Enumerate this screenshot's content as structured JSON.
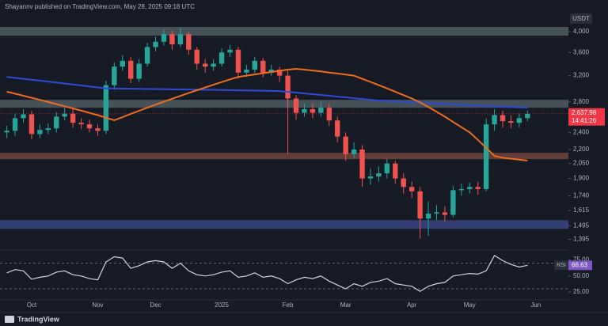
{
  "header": {
    "text": "Shayannv published on TradingView.com, May 28, 2025 09:18 UTC"
  },
  "footer": {
    "brand": "TradingView"
  },
  "chart_data": {
    "type": "candlestick",
    "currency": "USDT",
    "log_scale": true,
    "categories": [
      null,
      null,
      null,
      "Oct",
      null,
      null,
      null,
      null,
      null,
      null,
      null,
      "Nov",
      null,
      null,
      null,
      null,
      null,
      null,
      "Dec",
      null,
      null,
      null,
      null,
      null,
      null,
      null,
      "2025",
      null,
      null,
      null,
      null,
      null,
      null,
      null,
      "Feb",
      null,
      null,
      null,
      null,
      null,
      null,
      "Mar",
      null,
      null,
      null,
      null,
      null,
      null,
      null,
      "Apr",
      null,
      null,
      null,
      null,
      null,
      null,
      "May",
      null,
      null,
      null,
      null,
      null,
      null,
      null,
      "Jun"
    ],
    "open": [
      2400,
      2420,
      2580,
      2630,
      2380,
      2430,
      2450,
      2600,
      2640,
      2520,
      2500,
      2450,
      2420,
      3050,
      3350,
      3450,
      3150,
      3400,
      3700,
      3800,
      3950,
      3750,
      3950,
      3650,
      3400,
      3350,
      3400,
      3600,
      3650,
      3250,
      3300,
      3450,
      3250,
      3300,
      3200,
      2850,
      2650,
      2700,
      2650,
      2720,
      2550,
      2350,
      2150,
      2200,
      1900,
      1920,
      1950,
      2050,
      1900,
      1820,
      1780,
      1550,
      1590,
      1600,
      1580,
      1790,
      1800,
      1820,
      1800,
      2500,
      2620,
      2540,
      2520,
      2580,
      null
    ],
    "high": [
      2480,
      2640,
      2700,
      2680,
      2500,
      2510,
      2660,
      2720,
      2700,
      2580,
      2560,
      2500,
      3120,
      3420,
      3550,
      3520,
      3480,
      3780,
      3900,
      4050,
      4020,
      4080,
      4000,
      3700,
      3480,
      3480,
      3680,
      3740,
      3700,
      3380,
      3520,
      3500,
      3380,
      3350,
      3280,
      2900,
      2780,
      2780,
      2800,
      2780,
      2600,
      2400,
      2280,
      2250,
      2000,
      2020,
      2100,
      2080,
      1950,
      1870,
      1820,
      1690,
      1660,
      1650,
      1830,
      1850,
      1860,
      1870,
      2580,
      2700,
      2680,
      2620,
      2640,
      2680,
      null
    ],
    "low": [
      2330,
      2360,
      2520,
      2320,
      2330,
      2380,
      2400,
      2550,
      2460,
      2440,
      2400,
      2360,
      2380,
      2980,
      3280,
      3080,
      3100,
      3350,
      3620,
      3730,
      3650,
      3700,
      3560,
      3300,
      3250,
      3280,
      3350,
      3520,
      3150,
      3180,
      3240,
      3170,
      3200,
      3100,
      2150,
      2560,
      2600,
      2580,
      2600,
      2480,
      2280,
      2080,
      2100,
      1820,
      1840,
      1870,
      1900,
      1850,
      1760,
      1720,
      1400,
      1420,
      1540,
      1530,
      1560,
      1740,
      1760,
      1750,
      1780,
      2420,
      2460,
      2450,
      2460,
      2540,
      null
    ],
    "close": [
      2420,
      2580,
      2630,
      2380,
      2430,
      2450,
      2600,
      2640,
      2520,
      2500,
      2450,
      2420,
      3050,
      3350,
      3450,
      3150,
      3400,
      3700,
      3800,
      3950,
      3750,
      3950,
      3650,
      3400,
      3350,
      3400,
      3600,
      3650,
      3250,
      3300,
      3450,
      3250,
      3300,
      3200,
      2850,
      2650,
      2700,
      2650,
      2720,
      2550,
      2350,
      2150,
      2200,
      1900,
      1920,
      1950,
      2050,
      1900,
      1820,
      1780,
      1550,
      1590,
      1600,
      1580,
      1790,
      1800,
      1820,
      1800,
      2500,
      2620,
      2540,
      2520,
      2580,
      2637.98,
      null
    ],
    "up_color": "#26a69a",
    "down_color": "#ef5350",
    "ylim": [
      1327,
      4164
    ],
    "yticks": [
      {
        "value": 4000,
        "label": "4,000"
      },
      {
        "value": 3600,
        "label": "3,600"
      },
      {
        "value": 3200,
        "label": "3,200"
      },
      {
        "value": 2800,
        "label": "2,800"
      },
      {
        "value": 2400,
        "label": "2,400"
      },
      {
        "value": 2200,
        "label": "2,200"
      },
      {
        "value": 2050,
        "label": "2,050"
      },
      {
        "value": 1900,
        "label": "1,900"
      },
      {
        "value": 1740,
        "label": "1,740"
      },
      {
        "value": 1615,
        "label": "1,615"
      },
      {
        "value": 1495,
        "label": "1,495"
      },
      {
        "value": 1395,
        "label": "1,395"
      }
    ],
    "last_price": {
      "value": 2637.98,
      "label": "2,637.98",
      "timer": "14:41:26",
      "color": "#f23645"
    },
    "lines": [
      {
        "color": "#2e4bd8",
        "values": [
          3180,
          3165,
          3150,
          3135,
          3120,
          3105,
          3090,
          3075,
          3060,
          3045,
          3030,
          3015,
          3000,
          2998,
          2996,
          2995,
          2993,
          2991,
          2990,
          2988,
          2986,
          2985,
          2983,
          2981,
          2980,
          2978,
          2976,
          2973,
          2971,
          2969,
          2967,
          2965,
          2962,
          2960,
          2948,
          2937,
          2925,
          2913,
          2902,
          2890,
          2878,
          2867,
          2855,
          2843,
          2832,
          2820,
          2814,
          2808,
          2802,
          2796,
          2791,
          2785,
          2779,
          2773,
          2768,
          2762,
          2756,
          2750,
          2745,
          2740,
          2735,
          2730,
          2725,
          2720,
          null
        ]
      },
      {
        "color": "#f26b1d",
        "values": [
          2950,
          2920,
          2890,
          2860,
          2830,
          2800,
          2770,
          2740,
          2710,
          2680,
          2650,
          2620,
          2585,
          2552,
          2594,
          2636,
          2678,
          2720,
          2762,
          2804,
          2846,
          2888,
          2930,
          2972,
          3014,
          3056,
          3098,
          3140,
          3180,
          3200,
          3220,
          3240,
          3260,
          3280,
          3300,
          3313,
          3300,
          3285,
          3270,
          3250,
          3235,
          3218,
          3200,
          3150,
          3100,
          3050,
          3000,
          2950,
          2900,
          2850,
          2795,
          2730,
          2665,
          2600,
          2530,
          2465,
          2400,
          2310,
          2220,
          2130,
          2110,
          2100,
          2090,
          2080,
          null
        ]
      }
    ],
    "zones": [
      {
        "from": 3920,
        "to": 4098,
        "color": "#56666a"
      },
      {
        "from": 2720,
        "to": 2831,
        "color": "#56666a"
      },
      {
        "from": 2095,
        "to": 2164,
        "color": "#7a4a3c"
      },
      {
        "from": 1472,
        "to": 1538,
        "color": "#3d4c8c"
      }
    ],
    "rsi": {
      "label": "RSI",
      "color": "#d1d4dc",
      "values": [
        55,
        60,
        58,
        45,
        48,
        50,
        56,
        58,
        52,
        50,
        46,
        44,
        72,
        80,
        78,
        62,
        66,
        72,
        74,
        72,
        62,
        70,
        58,
        52,
        50,
        52,
        56,
        58,
        48,
        50,
        55,
        48,
        50,
        46,
        38,
        44,
        48,
        46,
        50,
        42,
        36,
        30,
        38,
        34,
        40,
        42,
        46,
        38,
        36,
        34,
        26,
        34,
        38,
        40,
        50,
        52,
        54,
        53,
        58,
        82,
        74,
        68,
        64,
        66.63,
        null
      ],
      "ylim": [
        14,
        88
      ],
      "yticks": [
        {
          "value": 75,
          "label": "75.00"
        },
        {
          "value": 50,
          "label": "50.00"
        },
        {
          "value": 25,
          "label": "25.00"
        }
      ],
      "bands": [
        30,
        70
      ],
      "value_color": "#7e57c2"
    }
  }
}
